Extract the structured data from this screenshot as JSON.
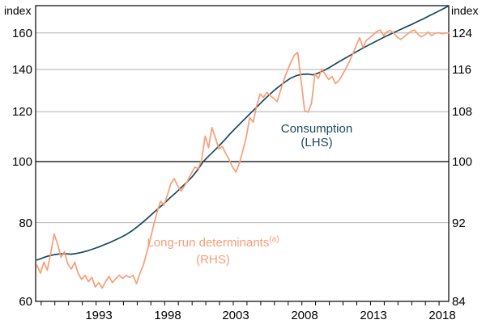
{
  "chart_data": {
    "type": "line",
    "left_axis": {
      "label": "index",
      "ticks": [
        "60",
        "80",
        "100",
        "120",
        "140",
        "160"
      ],
      "scale": "log",
      "range": [
        60,
        176.7
      ]
    },
    "right_axis": {
      "label": "index",
      "ticks": [
        "84",
        "92",
        "100",
        "108",
        "116",
        "124"
      ]
    },
    "x_axis": {
      "labels": [
        "1993",
        "1998",
        "2003",
        "2008",
        "2013",
        "2018"
      ],
      "range": [
        1988.6,
        2018.7
      ],
      "minor_tick_start": 1989,
      "minor_tick_end": 2018
    },
    "grid": {
      "gridline_color": "#b0b0b0",
      "reference_line_value": 100,
      "reference_line_color": "#000000",
      "border_color": "#000000"
    },
    "series": [
      {
        "name": "Consumption",
        "sub": "(LHS)",
        "axis": "LHS",
        "color": "#1a4a5c",
        "x": [
          1988.7,
          1989.0,
          1989.3,
          1989.6,
          1990.0,
          1990.4,
          1990.8,
          1991.2,
          1991.6,
          1992.0,
          1992.4,
          1992.8,
          1993.2,
          1993.6,
          1994.0,
          1994.4,
          1994.8,
          1995.2,
          1995.6,
          1996.0,
          1996.4,
          1996.8,
          1997.2,
          1997.6,
          1998.0,
          1998.4,
          1998.8,
          1999.2,
          1999.6,
          2000.0,
          2000.4,
          2000.8,
          2001.2,
          2001.6,
          2002.0,
          2002.4,
          2002.8,
          2003.2,
          2003.6,
          2004.0,
          2004.4,
          2004.8,
          2005.2,
          2005.6,
          2006.0,
          2006.4,
          2006.8,
          2007.2,
          2007.6,
          2008.0,
          2008.4,
          2008.8,
          2009.2,
          2009.6,
          2010.0,
          2010.4,
          2010.8,
          2011.2,
          2011.6,
          2012.0,
          2012.4,
          2012.8,
          2013.2,
          2013.6,
          2014.0,
          2014.4,
          2014.8,
          2015.2,
          2015.6,
          2016.0,
          2016.4,
          2016.8,
          2017.2,
          2017.6,
          2018.0,
          2018.4,
          2018.7
        ],
        "values": [
          69.8,
          70.2,
          70.6,
          70.9,
          71.2,
          71.4,
          71.4,
          71.3,
          71.5,
          71.8,
          72.2,
          72.7,
          73.2,
          73.8,
          74.4,
          75.1,
          75.8,
          76.6,
          77.6,
          78.8,
          80.1,
          81.5,
          83.0,
          84.5,
          86.0,
          87.6,
          89.2,
          90.9,
          92.7,
          94.6,
          97.0,
          99.9,
          102.0,
          104.0,
          106.1,
          108.4,
          110.9,
          113.2,
          115.5,
          117.8,
          120.2,
          122.6,
          125.1,
          127.5,
          129.8,
          131.9,
          133.9,
          135.7,
          136.9,
          137.5,
          137.7,
          137.3,
          138.2,
          139.5,
          141.0,
          142.7,
          144.4,
          146.1,
          147.8,
          149.5,
          151.2,
          152.8,
          154.4,
          156.0,
          157.6,
          159.1,
          160.6,
          162.1,
          163.6,
          165.1,
          166.7,
          168.3,
          170.0,
          171.7,
          173.4,
          175.2,
          176.6
        ]
      },
      {
        "name": "Long-run determinants",
        "superscript": "(a)",
        "sub": "(RHS)",
        "axis": "RHS",
        "color": "#f99d77",
        "x": [
          1988.7,
          1988.95,
          1989.2,
          1989.45,
          1989.7,
          1989.95,
          1990.2,
          1990.45,
          1990.7,
          1990.95,
          1991.2,
          1991.45,
          1991.7,
          1991.95,
          1992.2,
          1992.45,
          1992.7,
          1992.95,
          1993.2,
          1993.45,
          1993.7,
          1993.95,
          1994.2,
          1994.45,
          1994.7,
          1994.95,
          1995.2,
          1995.45,
          1995.7,
          1995.95,
          1996.2,
          1996.45,
          1996.7,
          1996.95,
          1997.2,
          1997.45,
          1997.7,
          1997.95,
          1998.2,
          1998.45,
          1998.7,
          1998.95,
          1999.2,
          1999.45,
          1999.7,
          1999.95,
          2000.2,
          2000.45,
          2000.7,
          2000.95,
          2001.2,
          2001.45,
          2001.7,
          2001.95,
          2002.2,
          2002.45,
          2002.7,
          2002.95,
          2003.2,
          2003.45,
          2003.7,
          2003.95,
          2004.2,
          2004.45,
          2004.7,
          2004.95,
          2005.2,
          2005.45,
          2005.7,
          2005.95,
          2006.2,
          2006.45,
          2006.7,
          2006.95,
          2007.2,
          2007.45,
          2007.7,
          2007.95,
          2008.2,
          2008.45,
          2008.7,
          2008.95,
          2009.2,
          2009.45,
          2009.7,
          2009.95,
          2010.2,
          2010.45,
          2010.7,
          2010.95,
          2011.2,
          2011.45,
          2011.7,
          2011.95,
          2012.2,
          2012.45,
          2012.7,
          2012.95,
          2013.2,
          2013.45,
          2013.7,
          2013.95,
          2014.2,
          2014.45,
          2014.7,
          2014.95,
          2015.2,
          2015.45,
          2015.7,
          2015.95,
          2016.2,
          2016.45,
          2016.7,
          2016.95,
          2017.2,
          2017.45,
          2017.7,
          2017.95,
          2018.2,
          2018.45,
          2018.7
        ],
        "values": [
          87.4,
          86.6,
          87.7,
          86.9,
          88.6,
          90.7,
          89.6,
          88.2,
          88.8,
          87.5,
          87.0,
          87.7,
          86.6,
          86.0,
          86.4,
          85.8,
          86.2,
          85.3,
          85.7,
          85.2,
          85.8,
          86.3,
          85.7,
          86.1,
          86.4,
          86.1,
          86.4,
          86.2,
          86.4,
          85.6,
          86.6,
          87.4,
          88.7,
          90.1,
          91.7,
          93.3,
          94.6,
          94.1,
          95.4,
          96.9,
          97.6,
          96.6,
          95.9,
          96.6,
          97.4,
          98.3,
          99.2,
          99.0,
          100.3,
          103.9,
          102.1,
          105.3,
          103.6,
          101.9,
          102.3,
          101.2,
          100.3,
          99.2,
          98.5,
          99.8,
          101.6,
          103.8,
          107.0,
          106.2,
          109.0,
          111.2,
          110.6,
          111.5,
          110.9,
          110.4,
          109.8,
          111.9,
          114.0,
          115.8,
          117.5,
          119.0,
          119.6,
          113.5,
          108.2,
          107.9,
          109.5,
          115.1,
          114.2,
          116.1,
          115.0,
          114.0,
          114.6,
          113.2,
          113.8,
          114.9,
          116.2,
          117.6,
          119.2,
          121.0,
          122.9,
          120.7,
          122.3,
          122.9,
          123.6,
          124.3,
          124.7,
          123.4,
          124.3,
          124.6,
          123.9,
          123.0,
          122.5,
          123.1,
          123.8,
          124.4,
          124.7,
          123.7,
          123.1,
          123.5,
          124.2,
          123.4,
          123.9,
          124.1,
          123.8,
          124.0,
          124.0
        ]
      }
    ]
  }
}
